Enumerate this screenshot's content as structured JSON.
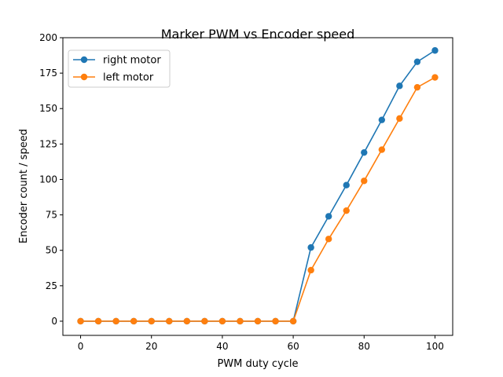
{
  "chart_data": {
    "type": "line",
    "title": "Marker PWM vs Encoder speed",
    "xlabel": "PWM duty cycle",
    "ylabel": "Encoder count / speed",
    "xlim": [
      -5,
      105
    ],
    "ylim": [
      -10,
      200
    ],
    "xticks": [
      0,
      20,
      40,
      60,
      80,
      100
    ],
    "yticks": [
      0,
      25,
      50,
      75,
      100,
      125,
      150,
      175,
      200
    ],
    "grid": false,
    "legend_position": "top-left",
    "x": [
      0,
      5,
      10,
      15,
      20,
      25,
      30,
      35,
      40,
      45,
      50,
      55,
      60,
      65,
      70,
      75,
      80,
      85,
      90,
      95,
      100
    ],
    "series": [
      {
        "name": "right motor",
        "color": "#1f77b4",
        "values": [
          0,
          0,
          0,
          0,
          0,
          0,
          0,
          0,
          0,
          0,
          0,
          0,
          0,
          52,
          74,
          96,
          119,
          142,
          166,
          183,
          191
        ]
      },
      {
        "name": "left motor",
        "color": "#ff7f0e",
        "values": [
          0,
          0,
          0,
          0,
          0,
          0,
          0,
          0,
          0,
          0,
          0,
          0,
          0,
          36,
          58,
          78,
          99,
          121,
          143,
          165,
          172
        ]
      }
    ]
  }
}
